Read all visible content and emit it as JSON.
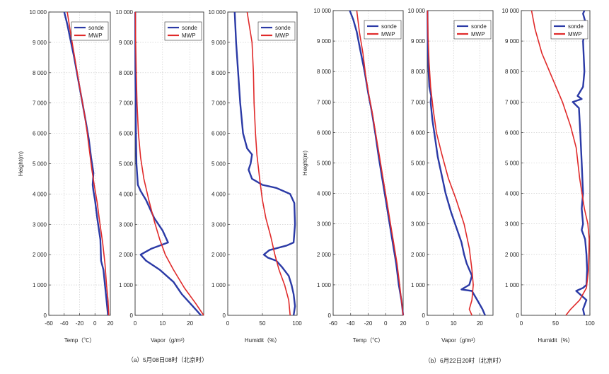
{
  "figure": {
    "captions": [
      "（a）5月08日08时（北京时）",
      "（b）6月22日20时（北京时）"
    ]
  },
  "chart_data": [
    {
      "type": "line",
      "panel": "a-temp",
      "group": 0,
      "ylabel": "Height(m)",
      "xlabel": "Temp（℃）",
      "xlim": [
        -60,
        20
      ],
      "ylim": [
        0,
        10000
      ],
      "xticks": [
        -60,
        -40,
        -20,
        0,
        20
      ],
      "yticks": [
        0,
        1000,
        2000,
        3000,
        4000,
        5000,
        6000,
        7000,
        8000,
        9000,
        10000
      ],
      "legend": "top-right",
      "grid": true,
      "series": [
        {
          "name": "sonde",
          "color": "#2b3aa6",
          "points": [
            [
              17,
              0
            ],
            [
              15,
              500
            ],
            [
              13,
              1000
            ],
            [
              11,
              1500
            ],
            [
              8,
              1800
            ],
            [
              7,
              2500
            ],
            [
              3,
              3200
            ],
            [
              0,
              3800
            ],
            [
              -2,
              4100
            ],
            [
              -3,
              4300
            ],
            [
              -2,
              4700
            ],
            [
              -5,
              5200
            ],
            [
              -8,
              5800
            ],
            [
              -12,
              6400
            ],
            [
              -17,
              7100
            ],
            [
              -22,
              7800
            ],
            [
              -27,
              8500
            ],
            [
              -32,
              9100
            ],
            [
              -36,
              9600
            ],
            [
              -40,
              10000
            ]
          ]
        },
        {
          "name": "MWP",
          "color": "#e02a2a",
          "points": [
            [
              18,
              0
            ],
            [
              17,
              500
            ],
            [
              15,
              1000
            ],
            [
              13,
              1700
            ],
            [
              10,
              2400
            ],
            [
              6,
              3100
            ],
            [
              3,
              3700
            ],
            [
              -1,
              4300
            ],
            [
              -4,
              4800
            ],
            [
              -7,
              5400
            ],
            [
              -10,
              6000
            ],
            [
              -14,
              6700
            ],
            [
              -19,
              7400
            ],
            [
              -23,
              8000
            ],
            [
              -27,
              8600
            ],
            [
              -31,
              9200
            ],
            [
              -36,
              10000
            ]
          ]
        }
      ]
    },
    {
      "type": "line",
      "panel": "a-vapor",
      "group": 0,
      "xlabel": "Vapor（g/m³）",
      "xlim": [
        0,
        25
      ],
      "ylim": [
        0,
        10000
      ],
      "xticks": [
        0,
        10,
        20
      ],
      "yticks": [
        0,
        1000,
        2000,
        3000,
        4000,
        5000,
        6000,
        7000,
        8000,
        9000,
        10000
      ],
      "legend": "top-right",
      "grid": true,
      "series": [
        {
          "name": "sonde",
          "color": "#2b3aa6",
          "points": [
            [
              24,
              0
            ],
            [
              21,
              300
            ],
            [
              17,
              700
            ],
            [
              14,
              1100
            ],
            [
              9,
              1500
            ],
            [
              4,
              1800
            ],
            [
              2,
              2000
            ],
            [
              6,
              2200
            ],
            [
              12,
              2400
            ],
            [
              10,
              2800
            ],
            [
              7,
              3200
            ],
            [
              4,
              3800
            ],
            [
              2,
              4100
            ],
            [
              1,
              4300
            ],
            [
              0.5,
              5000
            ],
            [
              0.3,
              6000
            ],
            [
              0.2,
              7000
            ],
            [
              0.1,
              8000
            ],
            [
              0.05,
              10000
            ]
          ]
        },
        {
          "name": "MWP",
          "color": "#e02a2a",
          "points": [
            [
              25,
              0
            ],
            [
              22,
              400
            ],
            [
              18,
              900
            ],
            [
              14,
              1500
            ],
            [
              11,
              2000
            ],
            [
              9,
              2500
            ],
            [
              7,
              3100
            ],
            [
              5,
              3800
            ],
            [
              3.2,
              4500
            ],
            [
              2,
              5200
            ],
            [
              1.2,
              6000
            ],
            [
              0.7,
              7000
            ],
            [
              0.4,
              8000
            ],
            [
              0.2,
              9000
            ],
            [
              0.1,
              10000
            ]
          ]
        }
      ]
    },
    {
      "type": "line",
      "panel": "a-humid",
      "group": 0,
      "xlabel": "Humidit（%）",
      "xlim": [
        0,
        100
      ],
      "ylim": [
        0,
        10000
      ],
      "xticks": [
        0,
        50,
        100
      ],
      "yticks": [
        0,
        1000,
        2000,
        3000,
        4000,
        5000,
        6000,
        7000,
        8000,
        9000,
        10000
      ],
      "legend": "top-right",
      "grid": true,
      "series": [
        {
          "name": "sonde",
          "color": "#2b3aa6",
          "points": [
            [
              95,
              0
            ],
            [
              97,
              300
            ],
            [
              95,
              700
            ],
            [
              92,
              1000
            ],
            [
              88,
              1300
            ],
            [
              78,
              1600
            ],
            [
              70,
              1800
            ],
            [
              58,
              1900
            ],
            [
              52,
              2000
            ],
            [
              60,
              2150
            ],
            [
              85,
              2300
            ],
            [
              95,
              2400
            ],
            [
              97,
              3000
            ],
            [
              96,
              3700
            ],
            [
              90,
              4000
            ],
            [
              70,
              4200
            ],
            [
              50,
              4300
            ],
            [
              35,
              4500
            ],
            [
              30,
              4800
            ],
            [
              33,
              5000
            ],
            [
              35,
              5300
            ],
            [
              28,
              5500
            ],
            [
              22,
              6000
            ],
            [
              18,
              7000
            ],
            [
              15,
              8000
            ],
            [
              12,
              9000
            ],
            [
              10,
              10000
            ]
          ]
        },
        {
          "name": "MWP",
          "color": "#e02a2a",
          "points": [
            [
              90,
              0
            ],
            [
              88,
              500
            ],
            [
              82,
              1000
            ],
            [
              74,
              1500
            ],
            [
              68,
              2000
            ],
            [
              62,
              2600
            ],
            [
              55,
              3200
            ],
            [
              50,
              3800
            ],
            [
              46,
              4500
            ],
            [
              42,
              5300
            ],
            [
              40,
              6000
            ],
            [
              38,
              7000
            ],
            [
              37,
              8000
            ],
            [
              35,
              9000
            ],
            [
              28,
              10000
            ]
          ]
        }
      ]
    },
    {
      "type": "line",
      "panel": "b-temp",
      "group": 1,
      "ylabel": "Height(m)",
      "xlabel": "Temp（℃）",
      "xlim": [
        -60,
        20
      ],
      "ylim": [
        0,
        10000
      ],
      "xticks": [
        -60,
        -40,
        -20,
        0,
        20
      ],
      "yticks": [
        0,
        1000,
        2000,
        3000,
        4000,
        5000,
        6000,
        7000,
        8000,
        9000,
        10000
      ],
      "legend": "top-right",
      "grid": true,
      "series": [
        {
          "name": "sonde",
          "color": "#2b3aa6",
          "points": [
            [
              20,
              0
            ],
            [
              18,
              500
            ],
            [
              15,
              1000
            ],
            [
              12,
              1700
            ],
            [
              8,
              2400
            ],
            [
              4,
              3100
            ],
            [
              0,
              3800
            ],
            [
              -4,
              4500
            ],
            [
              -8,
              5200
            ],
            [
              -12,
              6000
            ],
            [
              -16,
              6700
            ],
            [
              -20,
              7300
            ],
            [
              -24,
              8000
            ],
            [
              -29,
              8700
            ],
            [
              -33,
              9300
            ],
            [
              -37,
              9700
            ],
            [
              -41,
              10000
            ]
          ]
        },
        {
          "name": "MWP",
          "color": "#e02a2a",
          "points": [
            [
              20,
              0
            ],
            [
              18,
              500
            ],
            [
              16,
              1000
            ],
            [
              13,
              1700
            ],
            [
              9,
              2400
            ],
            [
              5,
              3100
            ],
            [
              1,
              3800
            ],
            [
              -3,
              4500
            ],
            [
              -7,
              5200
            ],
            [
              -11,
              5900
            ],
            [
              -15,
              6600
            ],
            [
              -19,
              7200
            ],
            [
              -23,
              7900
            ],
            [
              -26,
              8600
            ],
            [
              -30,
              9300
            ],
            [
              -33,
              10000
            ]
          ]
        }
      ]
    },
    {
      "type": "line",
      "panel": "b-vapor",
      "group": 1,
      "xlabel": "Vapor（g/m³）",
      "xlim": [
        0,
        25
      ],
      "ylim": [
        0,
        10000
      ],
      "xticks": [
        0,
        10,
        20
      ],
      "yticks": [
        0,
        1000,
        2000,
        3000,
        4000,
        5000,
        6000,
        7000,
        8000,
        9000,
        10000
      ],
      "legend": "top-right",
      "grid": true,
      "series": [
        {
          "name": "sonde",
          "color": "#2b3aa6",
          "points": [
            [
              22,
              0
            ],
            [
              21,
              200
            ],
            [
              19,
              500
            ],
            [
              17,
              800
            ],
            [
              13,
              850
            ],
            [
              16,
              1000
            ],
            [
              17,
              1300
            ],
            [
              15,
              1700
            ],
            [
              14,
              2000
            ],
            [
              13,
              2400
            ],
            [
              11,
              2900
            ],
            [
              9,
              3400
            ],
            [
              7,
              4000
            ],
            [
              5.5,
              4600
            ],
            [
              4,
              5200
            ],
            [
              3,
              5800
            ],
            [
              2,
              6400
            ],
            [
              1.3,
              7000
            ],
            [
              1.5,
              7200
            ],
            [
              0.8,
              7500
            ],
            [
              0.5,
              8000
            ],
            [
              0.2,
              9000
            ],
            [
              0.1,
              10000
            ]
          ]
        },
        {
          "name": "MWP",
          "color": "#e02a2a",
          "points": [
            [
              17,
              0
            ],
            [
              16,
              200
            ],
            [
              17,
              500
            ],
            [
              17.5,
              1000
            ],
            [
              17,
              1500
            ],
            [
              16,
              2200
            ],
            [
              14,
              3000
            ],
            [
              11,
              3800
            ],
            [
              8,
              4500
            ],
            [
              5.5,
              5300
            ],
            [
              3.5,
              6000
            ],
            [
              2.2,
              6800
            ],
            [
              1.3,
              7500
            ],
            [
              0.7,
              8300
            ],
            [
              0.3,
              9200
            ],
            [
              0.1,
              10000
            ]
          ]
        }
      ]
    },
    {
      "type": "line",
      "panel": "b-humid",
      "group": 1,
      "xlabel": "Humidit（%）",
      "xlim": [
        0,
        100
      ],
      "ylim": [
        0,
        10000
      ],
      "xticks": [
        0,
        50,
        100
      ],
      "yticks": [
        0,
        1000,
        2000,
        3000,
        4000,
        5000,
        6000,
        7000,
        8000,
        9000,
        10000
      ],
      "legend": "top-right",
      "grid": true,
      "series": [
        {
          "name": "sonde",
          "color": "#2b3aa6",
          "points": [
            [
              92,
              0
            ],
            [
              90,
              200
            ],
            [
              95,
              500
            ],
            [
              85,
              700
            ],
            [
              80,
              800
            ],
            [
              90,
              900
            ],
            [
              95,
              1000
            ],
            [
              96,
              1500
            ],
            [
              95,
              2000
            ],
            [
              93,
              2500
            ],
            [
              88,
              2800
            ],
            [
              90,
              3000
            ],
            [
              88,
              3500
            ],
            [
              90,
              4000
            ],
            [
              88,
              5000
            ],
            [
              86,
              6000
            ],
            [
              84,
              6800
            ],
            [
              75,
              7000
            ],
            [
              88,
              7100
            ],
            [
              82,
              7200
            ],
            [
              90,
              7500
            ],
            [
              92,
              8000
            ],
            [
              90,
              9000
            ],
            [
              95,
              9500
            ],
            [
              90,
              9900
            ],
            [
              92,
              10000
            ]
          ]
        },
        {
          "name": "MWP",
          "color": "#e02a2a",
          "points": [
            [
              65,
              0
            ],
            [
              72,
              200
            ],
            [
              85,
              500
            ],
            [
              95,
              900
            ],
            [
              98,
              1500
            ],
            [
              99,
              2500
            ],
            [
              97,
              3000
            ],
            [
              92,
              3500
            ],
            [
              85,
              4500
            ],
            [
              80,
              5500
            ],
            [
              72,
              6200
            ],
            [
              60,
              7000
            ],
            [
              45,
              7800
            ],
            [
              30,
              8600
            ],
            [
              20,
              9400
            ],
            [
              15,
              10000
            ]
          ]
        }
      ]
    }
  ]
}
